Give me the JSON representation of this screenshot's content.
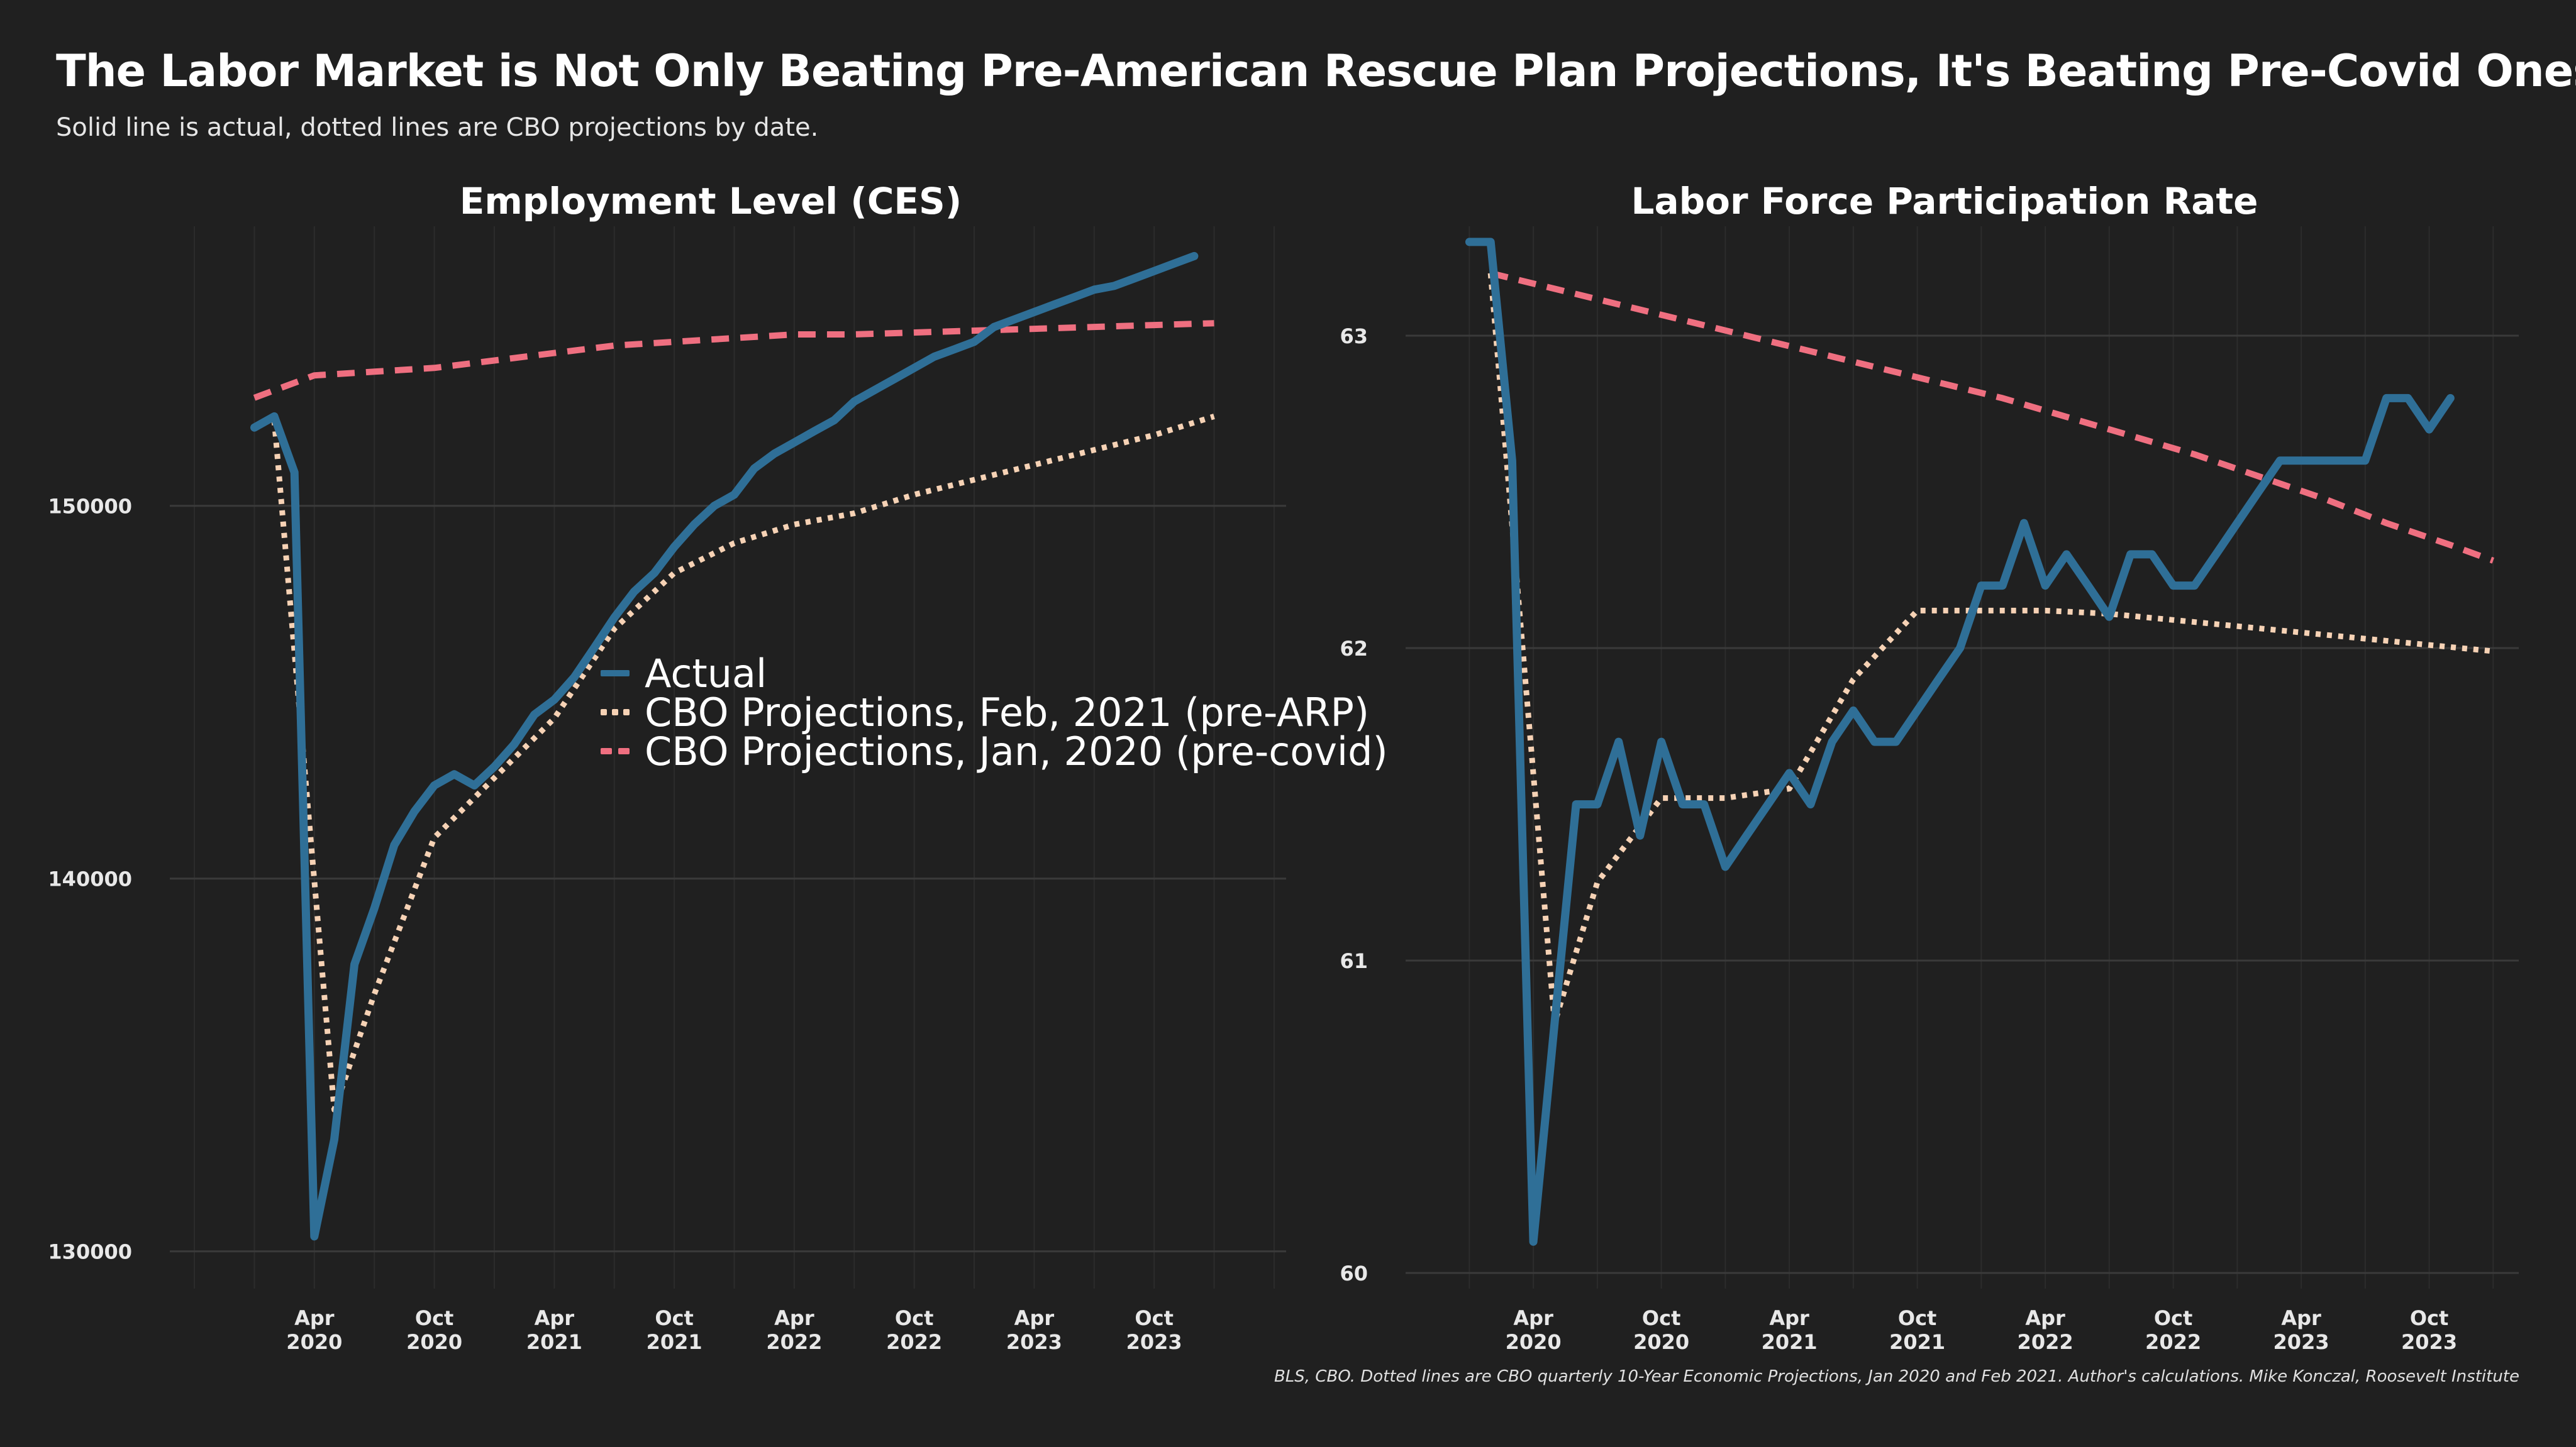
{
  "header": {
    "title": "The Labor Market is Not Only Beating Pre-American Rescue Plan Projections, It's Beating Pre-Covid Ones Too",
    "subtitle": "Solid line is actual, dotted lines are CBO projections by date."
  },
  "caption": "BLS, CBO. Dotted lines are CBO quarterly 10-Year Economic Projections, Jan 2020 and Feb 2021. Author's calculations. Mike Konczal, Roosevelt Institute",
  "colors": {
    "background": "#202020",
    "grid": "#3a3a3a",
    "actual": "#2f6f97",
    "feb2021": "#f6d2b5",
    "jan2020": "#ef6f80"
  },
  "legend": {
    "items": [
      {
        "label": "Actual",
        "style": "solid",
        "color": "#2f6f97"
      },
      {
        "label": "CBO Projections, Feb, 2021 (pre-ARP)",
        "style": "dotted",
        "color": "#f6d2b5"
      },
      {
        "label": "CBO Projections, Jan, 2020 (pre-covid)",
        "style": "dashed",
        "color": "#ef6f80"
      }
    ]
  },
  "chart_data": [
    {
      "type": "line",
      "title": "Employment Level (CES)",
      "xlabel": "",
      "ylabel": "",
      "x_ticks": [
        {
          "line1": "Apr",
          "line2": "2020",
          "t": 2020.25
        },
        {
          "line1": "Oct",
          "line2": "2020",
          "t": 2020.75
        },
        {
          "line1": "Apr",
          "line2": "2021",
          "t": 2021.25
        },
        {
          "line1": "Oct",
          "line2": "2021",
          "t": 2021.75
        },
        {
          "line1": "Apr",
          "line2": "2022",
          "t": 2022.25
        },
        {
          "line1": "Oct",
          "line2": "2022",
          "t": 2022.75
        },
        {
          "line1": "Apr",
          "line2": "2023",
          "t": 2023.25
        },
        {
          "line1": "Oct",
          "line2": "2023",
          "t": 2023.75
        }
      ],
      "xlim": [
        2019.7,
        2024.3
      ],
      "y_ticks": [
        "130000",
        "140000",
        "150000"
      ],
      "ylim": [
        129000,
        157500
      ],
      "grid": true,
      "series": [
        {
          "name": "Actual",
          "style": "solid",
          "color": "#2f6f97",
          "x": [
            2020.0,
            2020.083,
            2020.167,
            2020.25,
            2020.333,
            2020.417,
            2020.5,
            2020.583,
            2020.667,
            2020.75,
            2020.833,
            2020.917,
            2021.0,
            2021.083,
            2021.167,
            2021.25,
            2021.333,
            2021.417,
            2021.5,
            2021.583,
            2021.667,
            2021.75,
            2021.833,
            2021.917,
            2022.0,
            2022.083,
            2022.167,
            2022.25,
            2022.333,
            2022.417,
            2022.5,
            2022.583,
            2022.667,
            2022.75,
            2022.833,
            2022.917,
            2023.0,
            2023.083,
            2023.167,
            2023.25,
            2023.333,
            2023.417,
            2023.5,
            2023.583,
            2023.667,
            2023.75,
            2023.833,
            2023.917
          ],
          "y": [
            152100,
            152400,
            150900,
            130400,
            133000,
            137700,
            139200,
            140900,
            141800,
            142500,
            142800,
            142500,
            143000,
            143600,
            144400,
            144800,
            145400,
            146200,
            147000,
            147700,
            148200,
            148900,
            149500,
            150000,
            150300,
            151000,
            151400,
            151700,
            152000,
            152300,
            152800,
            153100,
            153400,
            153700,
            154000,
            154200,
            154400,
            154800,
            155000,
            155200,
            155400,
            155600,
            155800,
            155900,
            156100,
            156300,
            156500,
            156700
          ]
        },
        {
          "name": "CBO Projections, Feb, 2021 (pre-ARP)",
          "style": "dotted",
          "color": "#f6d2b5",
          "x": [
            2020.083,
            2020.333,
            2020.5,
            2020.75,
            2021.0,
            2021.25,
            2021.5,
            2021.75,
            2022.0,
            2022.25,
            2022.5,
            2022.75,
            2023.0,
            2023.25,
            2023.5,
            2023.75,
            2024.0
          ],
          "y": [
            152300,
            133800,
            136900,
            141100,
            142700,
            144300,
            146700,
            148200,
            149000,
            149500,
            149800,
            150300,
            150700,
            151100,
            151500,
            151900,
            152400
          ]
        },
        {
          "name": "CBO Projections, Jan, 2020 (pre-covid)",
          "style": "dashed",
          "color": "#ef6f80",
          "x": [
            2020.0,
            2020.25,
            2020.5,
            2020.75,
            2021.0,
            2021.25,
            2021.5,
            2021.75,
            2022.0,
            2022.25,
            2022.5,
            2022.75,
            2023.0,
            2023.25,
            2023.5,
            2023.75,
            2024.0
          ],
          "y": [
            152900,
            153500,
            153600,
            153700,
            153900,
            154100,
            154300,
            154400,
            154500,
            154600,
            154600,
            154650,
            154700,
            154750,
            154800,
            154850,
            154900
          ]
        }
      ]
    },
    {
      "type": "line",
      "title": "Labor Force Participation Rate",
      "xlabel": "",
      "ylabel": "",
      "x_ticks": [
        {
          "line1": "Apr",
          "line2": "2020",
          "t": 2020.25
        },
        {
          "line1": "Oct",
          "line2": "2020",
          "t": 2020.75
        },
        {
          "line1": "Apr",
          "line2": "2021",
          "t": 2021.25
        },
        {
          "line1": "Oct",
          "line2": "2021",
          "t": 2021.75
        },
        {
          "line1": "Apr",
          "line2": "2022",
          "t": 2022.25
        },
        {
          "line1": "Oct",
          "line2": "2022",
          "t": 2022.75
        },
        {
          "line1": "Apr",
          "line2": "2023",
          "t": 2023.25
        },
        {
          "line1": "Oct",
          "line2": "2023",
          "t": 2023.75
        }
      ],
      "xlim": [
        2019.8,
        2024.1
      ],
      "y_ticks": [
        "60",
        "61",
        "62",
        "63"
      ],
      "ylim": [
        59.95,
        63.35
      ],
      "grid": true,
      "series": [
        {
          "name": "Actual",
          "style": "solid",
          "color": "#2f6f97",
          "x": [
            2020.0,
            2020.083,
            2020.167,
            2020.25,
            2020.333,
            2020.417,
            2020.5,
            2020.583,
            2020.667,
            2020.75,
            2020.833,
            2020.917,
            2021.0,
            2021.083,
            2021.167,
            2021.25,
            2021.333,
            2021.417,
            2021.5,
            2021.583,
            2021.667,
            2021.75,
            2021.833,
            2021.917,
            2022.0,
            2022.083,
            2022.167,
            2022.25,
            2022.333,
            2022.417,
            2022.5,
            2022.583,
            2022.667,
            2022.75,
            2022.833,
            2022.917,
            2023.0,
            2023.083,
            2023.167,
            2023.25,
            2023.333,
            2023.417,
            2023.5,
            2023.583,
            2023.667,
            2023.75,
            2023.833
          ],
          "y": [
            63.3,
            63.3,
            62.6,
            60.1,
            60.8,
            61.5,
            61.5,
            61.7,
            61.4,
            61.7,
            61.5,
            61.5,
            61.3,
            61.4,
            61.5,
            61.6,
            61.5,
            61.7,
            61.8,
            61.7,
            61.7,
            61.8,
            61.9,
            62.0,
            62.2,
            62.2,
            62.4,
            62.2,
            62.3,
            62.2,
            62.1,
            62.3,
            62.3,
            62.2,
            62.2,
            62.3,
            62.4,
            62.5,
            62.6,
            62.6,
            62.6,
            62.6,
            62.6,
            62.8,
            62.8,
            62.7,
            62.8
          ]
        },
        {
          "name": "CBO Projections, Feb, 2021 (pre-ARP)",
          "style": "dotted",
          "color": "#f6d2b5",
          "x": [
            2020.083,
            2020.333,
            2020.5,
            2020.75,
            2021.0,
            2021.25,
            2021.5,
            2021.75,
            2022.0,
            2022.25,
            2022.5,
            2022.75,
            2023.0,
            2023.25,
            2023.5,
            2023.75,
            2024.0
          ],
          "y": [
            63.2,
            60.8,
            61.25,
            61.52,
            61.52,
            61.55,
            61.9,
            62.12,
            62.12,
            62.12,
            62.11,
            62.09,
            62.07,
            62.05,
            62.03,
            62.01,
            61.99
          ]
        },
        {
          "name": "CBO Projections, Jan, 2020 (pre-covid)",
          "style": "dashed",
          "color": "#ef6f80",
          "x": [
            2020.083,
            2020.333,
            2020.583,
            2020.833,
            2021.083,
            2021.333,
            2021.583,
            2021.833,
            2022.083,
            2022.333,
            2022.583,
            2022.833,
            2023.083,
            2023.333,
            2023.583,
            2023.833,
            2024.0
          ],
          "y": [
            63.2,
            63.15,
            63.1,
            63.05,
            63.0,
            62.95,
            62.9,
            62.85,
            62.8,
            62.74,
            62.68,
            62.62,
            62.55,
            62.48,
            62.4,
            62.33,
            62.28
          ]
        }
      ]
    }
  ]
}
